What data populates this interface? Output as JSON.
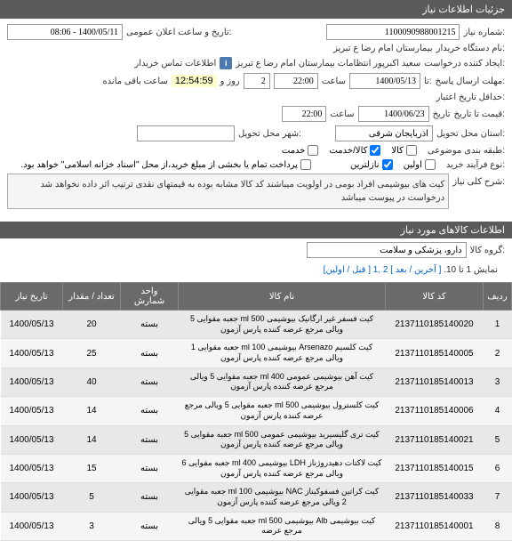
{
  "header": {
    "title": "جزئیات اطلاعات نیاز"
  },
  "form": {
    "need_number_label": ":شماره نیاز",
    "need_number": "1100090988001215",
    "announce_label": ":تاریخ و ساعت اعلان عمومی",
    "announce_value": "1400/05/11 - 08:06",
    "buyer_label": ":نام دستگاه خریدار",
    "buyer_value": "بیمارستان امام رضا  ع  تبریز",
    "requester_label": ":ایجاد کننده درخواست",
    "requester_value": "سعید اکبرپور انتظامات بیمارستان امام رضا  ع  تبریز",
    "contact_btn": "اطلاعات تماس خریدار",
    "deadline_label": ":تا",
    "deadline_date": "1400/05/13",
    "time_label": "ساعت",
    "deadline_time": "22:00",
    "days_label": "روز و",
    "days_value": "2",
    "remain_time": "12:54:59",
    "remain_label": "ساعت باقی مانده",
    "response_deadline_label": ":مهلت ارسال پاسخ",
    "date_label": "تاریخ",
    "credit_expire_label": ":حداقل تاریخ اعتبار",
    "credit_date": "1400/06/23",
    "credit_time": "22:00",
    "price_to_label": ":قیمت تا تاریخ",
    "province_label": ":استان محل تحویل",
    "province_value": "آذربایجان شرقی",
    "city_label": ":شهر محل تحویل",
    "category_label": ":طبقه بندی موضوعی",
    "type_goods": "کالا",
    "type_service": "کالا/خدمت",
    "type_svc": "خدمت",
    "process_label": ":نوع فرآیند خرید",
    "process_first": "اولین",
    "process_lowest": "نازلترین",
    "payment_note": "پرداخت تمام یا بخشی از مبلغ خرید،از محل \"اسناد خزانه اسلامی\" خواهد بود.",
    "desc_label": ":شرح کلی نیاز",
    "desc_text": "کیت های بیوشیمی افراد بومی در اولویت میباشند کد کالا مشابه بوده به قیمتهای نقدی ترتیب اثر داده نخواهد شد درخواست در پیوست میباشد"
  },
  "goods_section": {
    "title": "اطلاعات کالاهای مورد نیاز",
    "group_label": ":گروه کالا",
    "group_value": "دارو، پزشکی و سلامت",
    "pagination_text": "نمایش 1 تا 10.",
    "pagination_nav": "[ آخرین / بعد ] 2 ,1 [ قبل / اولین]"
  },
  "table": {
    "headers": {
      "row": "ردیف",
      "code": "کد کالا",
      "name": "نام کالا",
      "unit": "واحد شمارش",
      "qty": "تعداد / مقدار",
      "date": "تاریخ نیاز"
    },
    "rows": [
      {
        "n": "1",
        "code": "2137110185140020",
        "name": "کیت فسفر غیر ارگانیک بیوشیمی 500 ml جعبه مقوایی 5 ویالی مرجع عرضه کننده پارس آزمون",
        "unit": "بسته",
        "qty": "20",
        "date": "1400/05/13"
      },
      {
        "n": "2",
        "code": "2137110185140005",
        "name": "کیت کلسیم Arsenazo بیوشیمی 100 ml جعبه مقوایی 1 ویالی مرجع عرضه کننده پارس آزمون",
        "unit": "بسته",
        "qty": "25",
        "date": "1400/05/13"
      },
      {
        "n": "3",
        "code": "2137110185140013",
        "name": "کیت آهن بیوشیمی عمومی 400 ml جعبه مقوایی 5 ویالی مرجع عرضه کننده پارس آزمون",
        "unit": "بسته",
        "qty": "40",
        "date": "1400/05/13"
      },
      {
        "n": "4",
        "code": "2137110185140006",
        "name": "کیت کلسترول بیوشیمی 500 ml جعبه مقوایی 5 ویالی مرجع عرضه کننده پارس آزمون",
        "unit": "بسته",
        "qty": "14",
        "date": "1400/05/13"
      },
      {
        "n": "5",
        "code": "2137110185140021",
        "name": "کیت تری گلیسیرید بیوشیمی عمومی 500 ml جعبه مقوایی 5 ویالی مرجع عرضه کننده پارس آزمون",
        "unit": "بسته",
        "qty": "14",
        "date": "1400/05/13"
      },
      {
        "n": "6",
        "code": "2137110185140015",
        "name": "کیت لاکتات دهیدروژناز LDH بیوشیمی 400 ml جعبه مقوایی 6 ویالی مرجع عرضه کننده پارس آزمون",
        "unit": "بسته",
        "qty": "15",
        "date": "1400/05/13"
      },
      {
        "n": "7",
        "code": "2137110185140033",
        "name": "کیت کراتین فسفوکیناز NAC بیوشیمی 100 ml جعبه مقوایی 2 ویالی مرجع عرضه کننده پارس آزمون",
        "unit": "بسته",
        "qty": "5",
        "date": "1400/05/13"
      },
      {
        "n": "8",
        "code": "2137110185140001",
        "name": "کیت بیوشیمی Alb بیوشیمی 500 ml جعبه مقوایی 5 ویالی مرجع عرضه",
        "unit": "بسته",
        "qty": "3",
        "date": "1400/05/13"
      }
    ]
  }
}
